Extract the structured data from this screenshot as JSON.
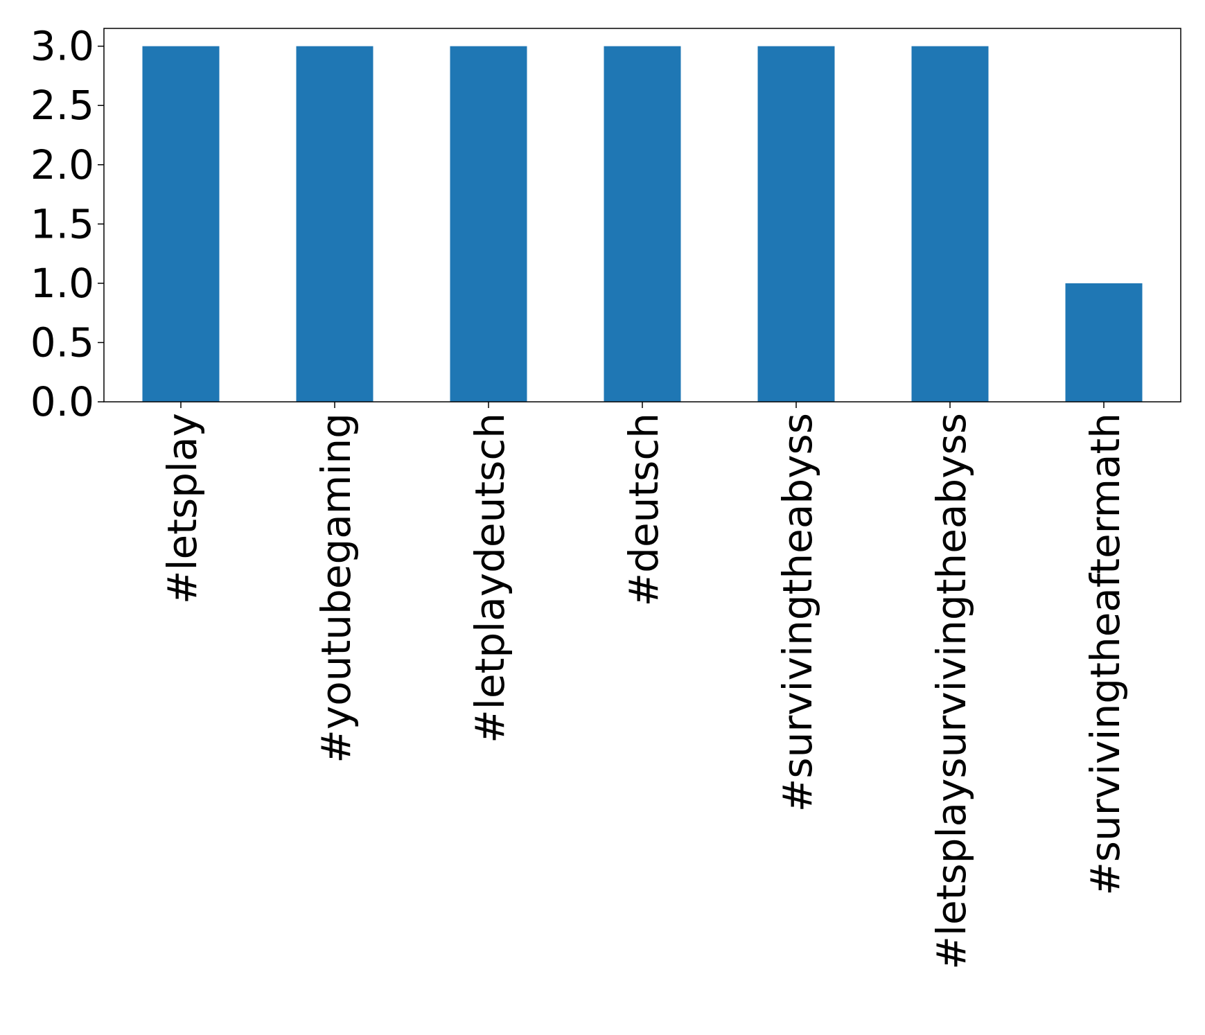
{
  "chart_data": {
    "type": "bar",
    "title": "",
    "xlabel": "",
    "ylabel": "",
    "categories": [
      "#letsplay",
      "#youtubegaming",
      "#letplaydeutsch",
      "#deutsch",
      "#survivingtheabyss",
      "#letsplaysurvivingtheabyss",
      "#survivingtheaftermath"
    ],
    "values": [
      3,
      3,
      3,
      3,
      3,
      3,
      1
    ],
    "ylim": [
      0,
      3.15
    ],
    "yticks": [
      0.0,
      0.5,
      1.0,
      1.5,
      2.0,
      2.5,
      3.0
    ],
    "ytick_labels": [
      "0.0",
      "0.5",
      "1.0",
      "1.5",
      "2.0",
      "2.5",
      "3.0"
    ],
    "grid": false,
    "legend": "none",
    "bar_color": "#1f77b4",
    "axis_color": "#000000"
  }
}
